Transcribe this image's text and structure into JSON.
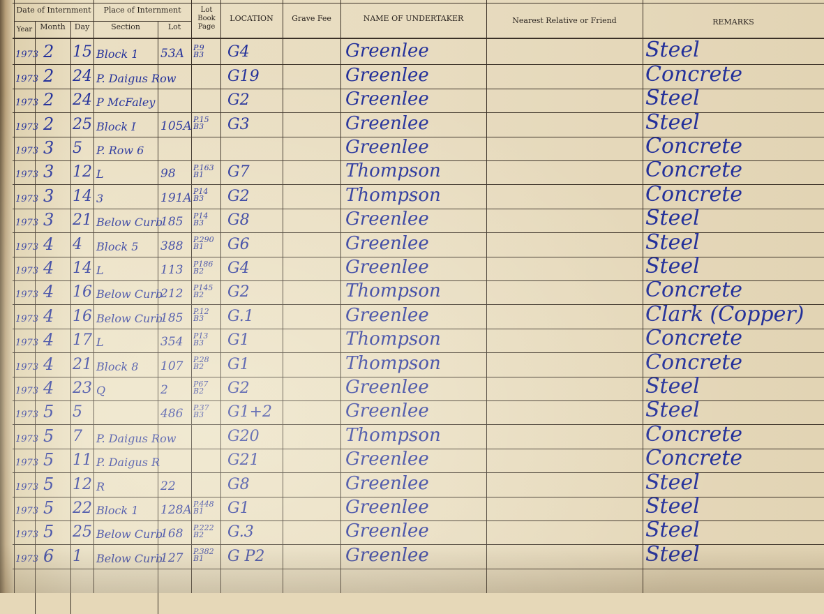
{
  "header": {
    "date_group": "Date of Internment",
    "place_group": "Place of Internment",
    "year": "Year",
    "month": "Month",
    "day": "Day",
    "section": "Section",
    "lot": "Lot",
    "lot_book_page": "Lot Book Page",
    "location": "LOCATION",
    "grave_fee": "Grave Fee",
    "undertaker": "NAME OF UNDERTAKER",
    "relative": "Nearest Relative or Friend",
    "remarks": "REMARKS"
  },
  "ink_color": "#23309a",
  "rows": [
    {
      "year": "1973",
      "month": "2",
      "day": "15",
      "section": "Block 1",
      "lot": "53A",
      "page": "P.9 B3",
      "location": "G4",
      "undertaker": "Greenlee",
      "remarks": "Steel"
    },
    {
      "year": "1973",
      "month": "2",
      "day": "24",
      "section": "P. Daigus Row",
      "lot": "",
      "page": "",
      "location": "G19",
      "undertaker": "Greenlee",
      "remarks": "Concrete"
    },
    {
      "year": "1973",
      "month": "2",
      "day": "24",
      "section": "P McFaley",
      "lot": "",
      "page": "",
      "location": "G2",
      "undertaker": "Greenlee",
      "remarks": "Steel"
    },
    {
      "year": "1973",
      "month": "2",
      "day": "25",
      "section": "Block I",
      "lot": "105A",
      "page": "P.15 B3",
      "location": "G3",
      "undertaker": "Greenlee",
      "remarks": "Steel"
    },
    {
      "year": "1973",
      "month": "3",
      "day": "5",
      "section": "P. Row 6",
      "lot": "",
      "page": "",
      "location": "",
      "undertaker": "Greenlee",
      "remarks": "Concrete"
    },
    {
      "year": "1973",
      "month": "3",
      "day": "12",
      "section": "L",
      "lot": "98",
      "page": "P.163 B1",
      "location": "G7",
      "undertaker": "Thompson",
      "remarks": "Concrete"
    },
    {
      "year": "1973",
      "month": "3",
      "day": "14",
      "section": "3",
      "lot": "191A",
      "page": "P14 B3",
      "location": "G2",
      "undertaker": "Thompson",
      "remarks": "Concrete"
    },
    {
      "year": "1973",
      "month": "3",
      "day": "21",
      "section": "Below Curb",
      "lot": "185",
      "page": "P14 B3",
      "location": "G8",
      "undertaker": "Greenlee",
      "remarks": "Steel"
    },
    {
      "year": "1973",
      "month": "4",
      "day": "4",
      "section": "Block 5",
      "lot": "388",
      "page": "P.290 B1",
      "location": "G6",
      "undertaker": "Greenlee",
      "remarks": "Steel"
    },
    {
      "year": "1973",
      "month": "4",
      "day": "14",
      "section": "L",
      "lot": "113",
      "page": "P186 B2",
      "location": "G4",
      "undertaker": "Greenlee",
      "remarks": "Steel"
    },
    {
      "year": "1973",
      "month": "4",
      "day": "16",
      "section": "Below Curb",
      "lot": "212",
      "page": "P145 B2",
      "location": "G2",
      "undertaker": "Thompson",
      "remarks": "Concrete"
    },
    {
      "year": "1973",
      "month": "4",
      "day": "16",
      "section": "Below Curb",
      "lot": "185",
      "page": "P.12 B3",
      "location": "G.1",
      "undertaker": "Greenlee",
      "remarks": "Clark (Copper)"
    },
    {
      "year": "1973",
      "month": "4",
      "day": "17",
      "section": "L",
      "lot": "354",
      "page": "P13 B3",
      "location": "G1",
      "undertaker": "Thompson",
      "remarks": "Concrete"
    },
    {
      "year": "1973",
      "month": "4",
      "day": "21",
      "section": "Block 8",
      "lot": "107",
      "page": "P.28 B2",
      "location": "G1",
      "undertaker": "Thompson",
      "remarks": "Concrete"
    },
    {
      "year": "1973",
      "month": "4",
      "day": "23",
      "section": "Q",
      "lot": "2",
      "page": "P67 B2",
      "location": "G2",
      "undertaker": "Greenlee",
      "remarks": "Steel"
    },
    {
      "year": "1973",
      "month": "5",
      "day": "5",
      "section": "",
      "lot": "486",
      "page": "P.37 B3",
      "location": "G1+2",
      "undertaker": "Greenlee",
      "remarks": "Steel"
    },
    {
      "year": "1973",
      "month": "5",
      "day": "7",
      "section": "P. Daigus Row",
      "lot": "",
      "page": "",
      "location": "G20",
      "undertaker": "Thompson",
      "remarks": "Concrete"
    },
    {
      "year": "1973",
      "month": "5",
      "day": "11",
      "section": "P. Daigus R",
      "lot": "",
      "page": "",
      "location": "G21",
      "undertaker": "Greenlee",
      "remarks": "Concrete"
    },
    {
      "year": "1973",
      "month": "5",
      "day": "12",
      "section": "R",
      "lot": "22",
      "page": "",
      "location": "G8",
      "undertaker": "Greenlee",
      "remarks": "Steel"
    },
    {
      "year": "1973",
      "month": "5",
      "day": "22",
      "section": "Block 1",
      "lot": "128A",
      "page": "P.448 B1",
      "location": "G1",
      "undertaker": "Greenlee",
      "remarks": "Steel"
    },
    {
      "year": "1973",
      "month": "5",
      "day": "25",
      "section": "Below Curb",
      "lot": "168",
      "page": "P.222 B2",
      "location": "G.3",
      "undertaker": "Greenlee",
      "remarks": "Steel"
    },
    {
      "year": "1973",
      "month": "6",
      "day": "1",
      "section": "Below Curb",
      "lot": "127",
      "page": "P.382 B1",
      "location": "G P2",
      "undertaker": "Greenlee",
      "remarks": "Steel"
    }
  ]
}
